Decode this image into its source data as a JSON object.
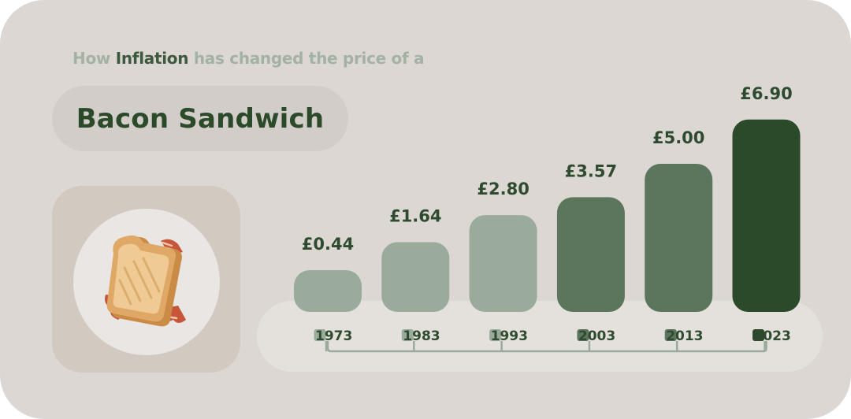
{
  "header": {
    "subtitle_parts": [
      "How ",
      "Inflation",
      " has changed the price of a"
    ],
    "title": "Bacon Sandwich"
  },
  "icon": "bacon-sandwich-icon",
  "colors": {
    "light": "#9aab9b",
    "mid": "#5c765e",
    "dark": "#2a4a2a",
    "label": "#2e4b30"
  },
  "chart_data": {
    "type": "bar",
    "title": "",
    "xlabel": "",
    "ylabel": "",
    "categories": [
      "1973",
      "1983",
      "1993",
      "2003",
      "2013",
      "2023"
    ],
    "values": [
      0.44,
      1.64,
      2.8,
      3.57,
      5.0,
      6.9
    ],
    "value_labels": [
      "£0.44",
      "£1.64",
      "£2.80",
      "£3.57",
      "£5.00",
      "£6.90"
    ],
    "bar_shades": [
      "light",
      "light",
      "light",
      "mid",
      "mid",
      "dark"
    ],
    "grid": false,
    "legend": "none"
  }
}
